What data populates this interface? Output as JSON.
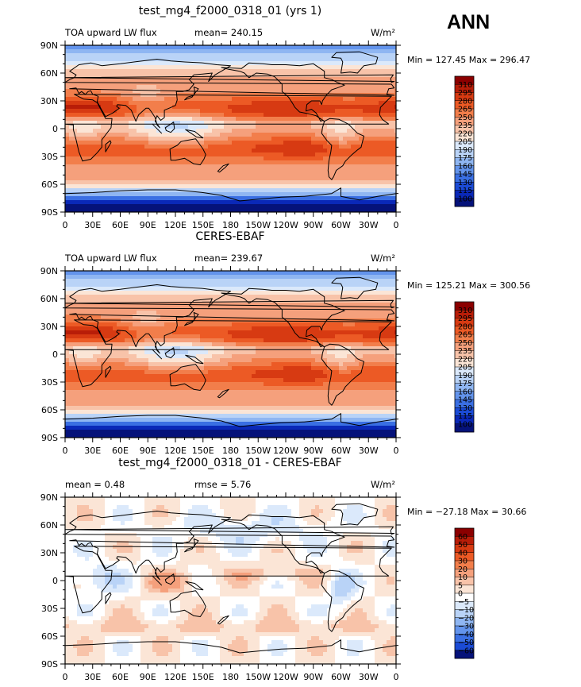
{
  "season_label": "ANN",
  "units": "W/m²",
  "chart_data": [
    {
      "type": "heatmap",
      "title": "test_mg4_f2000_0318_01 (yrs 1)",
      "variable": "TOA upward LW flux",
      "stat_text": "mean= 240.15",
      "minmax_text": "Min = 127.45 Max = 296.47",
      "units": "W/m²",
      "xlabels": [
        "0",
        "30E",
        "60E",
        "90E",
        "120E",
        "150E",
        "180",
        "150W",
        "120W",
        "90W",
        "60W",
        "30W",
        "0"
      ],
      "ylabels": [
        "90N",
        "60N",
        "30N",
        "0",
        "30S",
        "60S",
        "90S"
      ],
      "xlim": [
        0,
        360
      ],
      "ylim": [
        -90,
        90
      ],
      "colorbar_levels": [
        "310",
        "295",
        "280",
        "265",
        "250",
        "235",
        "220",
        "205",
        "190",
        "175",
        "160",
        "145",
        "130",
        "115",
        "100"
      ],
      "colorbar_colors": [
        "#8b0000",
        "#b81d08",
        "#d73a12",
        "#ec5a25",
        "#f27e4b",
        "#f5a07c",
        "#f8c3a9",
        "#fbe5d6",
        "#dbe9fb",
        "#b9d3f7",
        "#8fb6f2",
        "#6394ec",
        "#3a6fe3",
        "#1b4bd6",
        "#0a28b8",
        "#05127a"
      ],
      "field": "olr"
    },
    {
      "type": "heatmap",
      "title": "CERES-EBAF",
      "variable": "TOA upward LW flux",
      "stat_text": "mean= 239.67",
      "minmax_text": "Min = 125.21 Max = 300.56",
      "units": "W/m²",
      "xlabels": [
        "0",
        "30E",
        "60E",
        "90E",
        "120E",
        "150E",
        "180",
        "150W",
        "120W",
        "90W",
        "60W",
        "30W",
        "0"
      ],
      "ylabels": [
        "90N",
        "60N",
        "30N",
        "0",
        "30S",
        "60S",
        "90S"
      ],
      "xlim": [
        0,
        360
      ],
      "ylim": [
        -90,
        90
      ],
      "colorbar_levels": [
        "310",
        "295",
        "280",
        "265",
        "250",
        "235",
        "220",
        "205",
        "190",
        "175",
        "160",
        "145",
        "130",
        "115",
        "100"
      ],
      "colorbar_colors": [
        "#8b0000",
        "#b81d08",
        "#d73a12",
        "#ec5a25",
        "#f27e4b",
        "#f5a07c",
        "#f8c3a9",
        "#fbe5d6",
        "#dbe9fb",
        "#b9d3f7",
        "#8fb6f2",
        "#6394ec",
        "#3a6fe3",
        "#1b4bd6",
        "#0a28b8",
        "#05127a"
      ],
      "field": "olr"
    },
    {
      "type": "heatmap",
      "title": "test_mg4_f2000_0318_01 - CERES-EBAF",
      "variable": "",
      "stat_text": "mean =    0.48",
      "stat_text2": "rmse =    5.76",
      "minmax_text": "Min = −27.18 Max =  30.66",
      "units": "W/m²",
      "xlabels": [
        "0",
        "30E",
        "60E",
        "90E",
        "120E",
        "150E",
        "180",
        "150W",
        "120W",
        "90W",
        "60W",
        "30W",
        "0"
      ],
      "ylabels": [
        "90N",
        "60N",
        "30N",
        "0",
        "30S",
        "60S",
        "90S"
      ],
      "xlim": [
        0,
        360
      ],
      "ylim": [
        -90,
        90
      ],
      "colorbar_levels": [
        "60",
        "50",
        "40",
        "30",
        "20",
        "10",
        "5",
        "0",
        "−5",
        "−10",
        "−20",
        "−30",
        "−40",
        "−50",
        "−60"
      ],
      "colorbar_colors": [
        "#8b0000",
        "#b81d08",
        "#d73a12",
        "#ec5a25",
        "#f27e4b",
        "#f5a07c",
        "#f8c3a9",
        "#fbe5d6",
        "#ffffff",
        "#dbe9fb",
        "#b9d3f7",
        "#8fb6f2",
        "#6394ec",
        "#3a6fe3",
        "#1b4bd6",
        "#05127a"
      ],
      "field": "diff"
    }
  ]
}
